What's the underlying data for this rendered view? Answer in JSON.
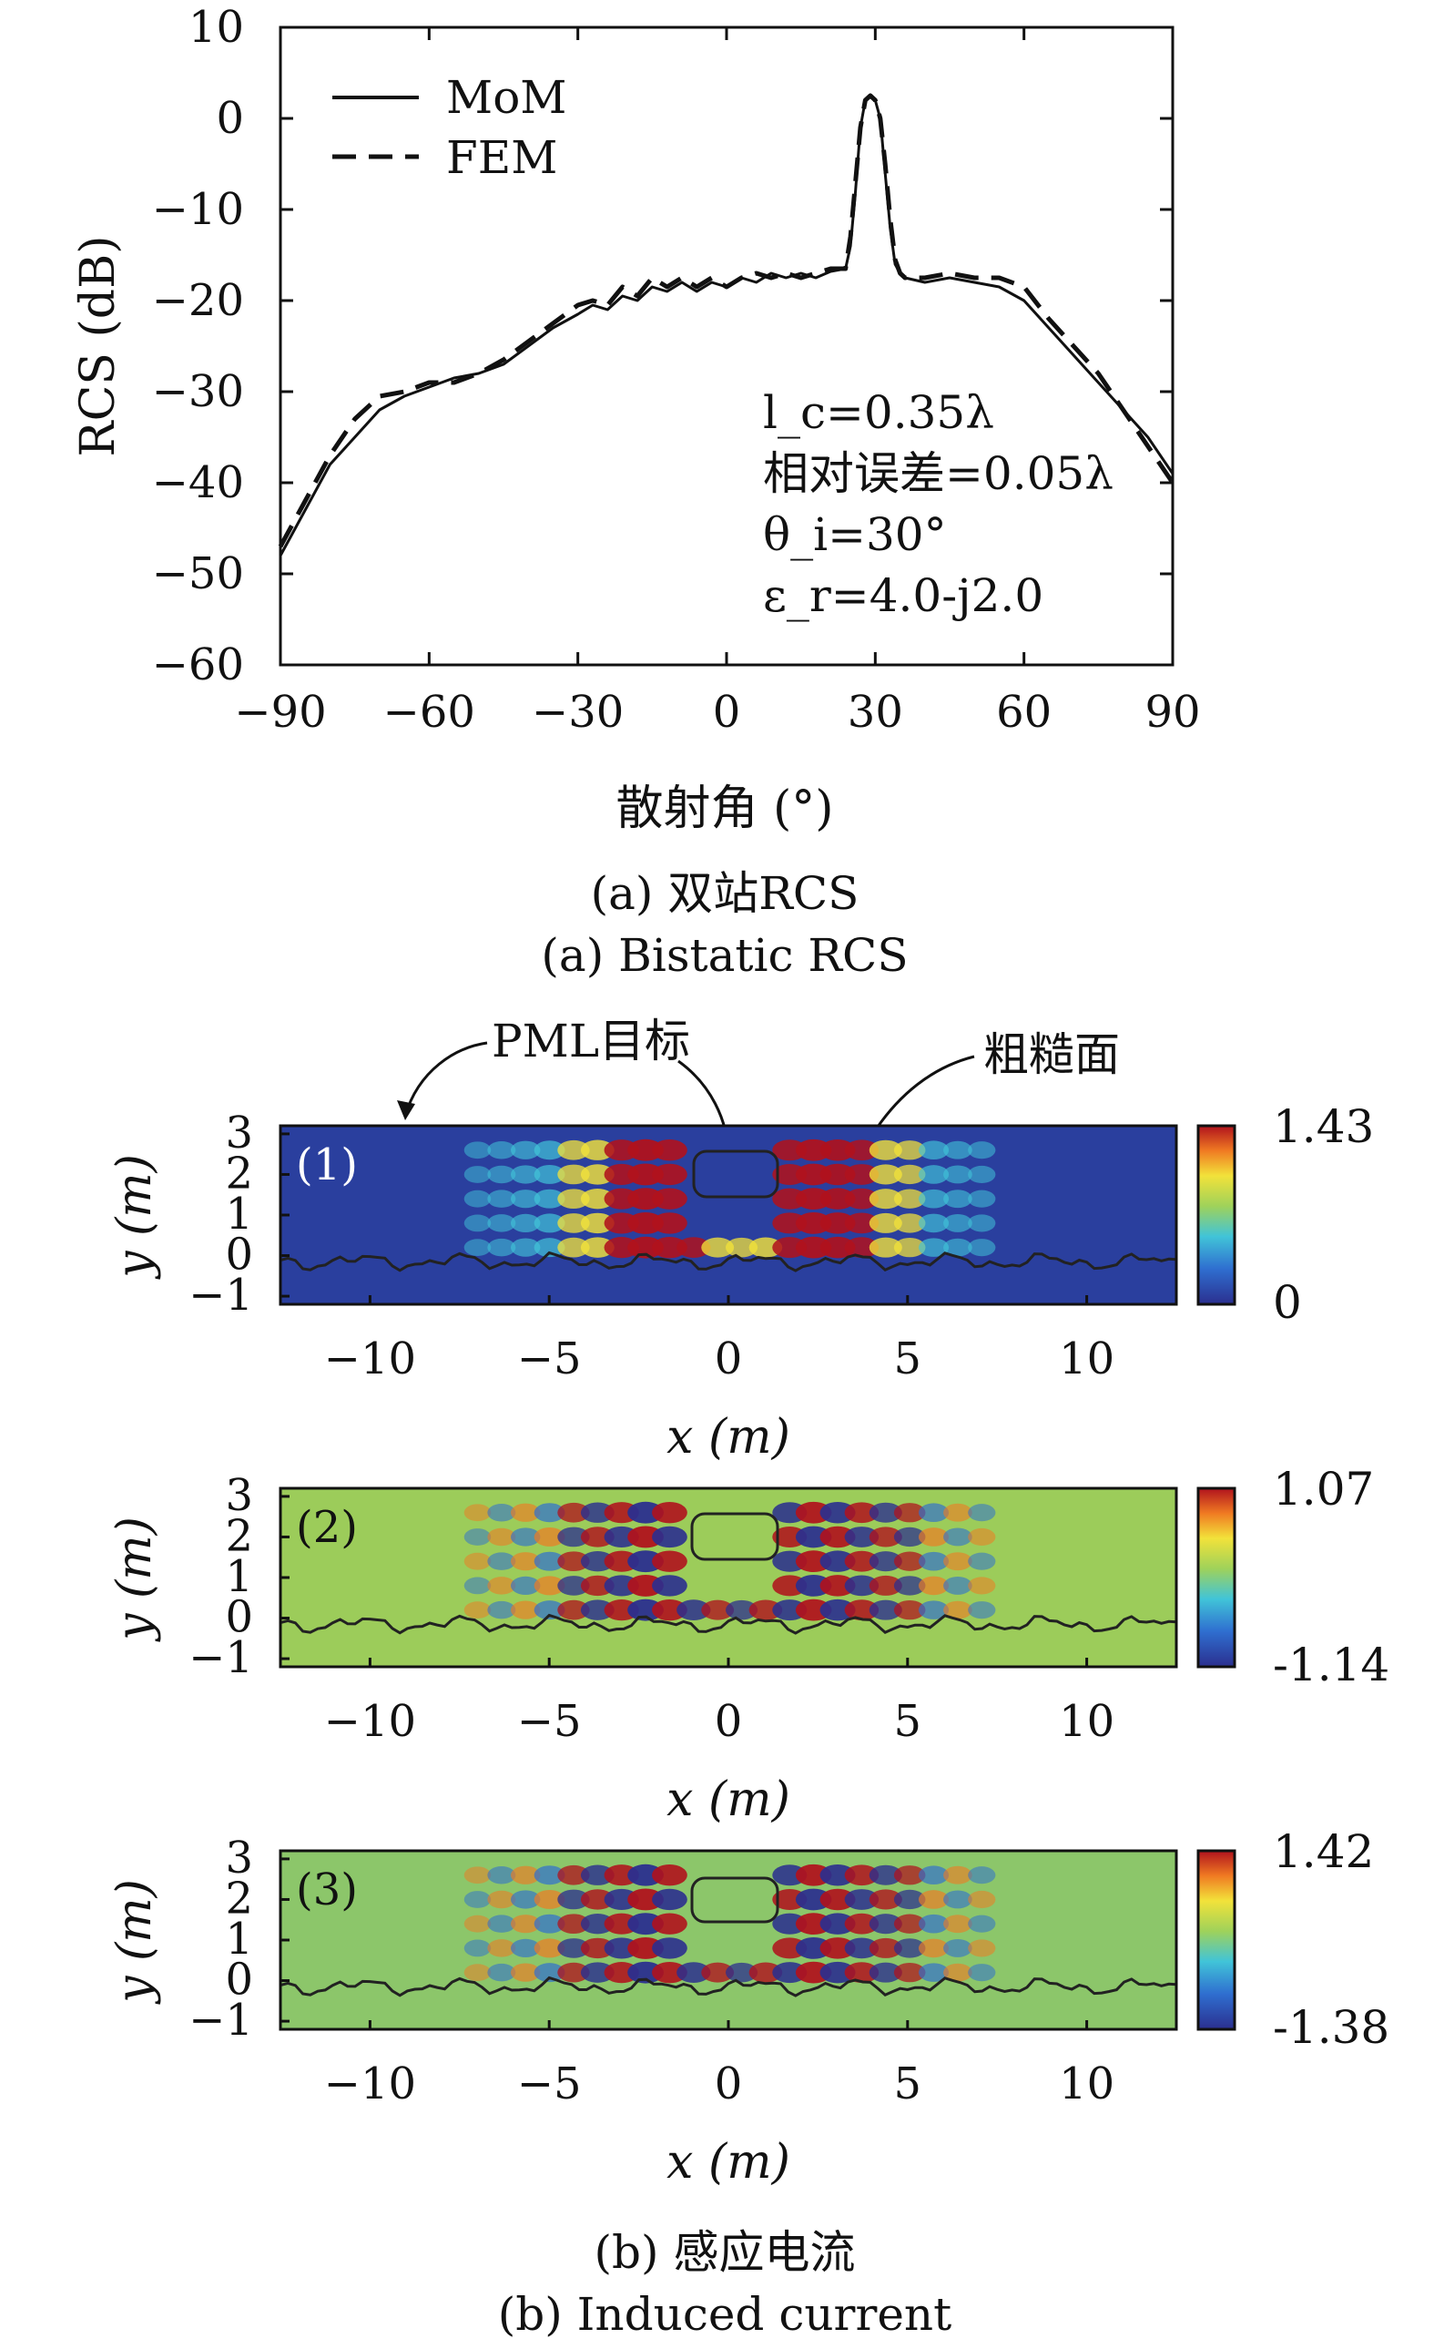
{
  "chart_data": [
    {
      "type": "line",
      "xlabel": "散射角 (°)",
      "ylabel": "RCS (dB)",
      "xlim": [
        -90,
        90
      ],
      "ylim": [
        -60,
        10
      ],
      "xticks": [
        -90,
        -60,
        -30,
        0,
        30,
        60,
        90
      ],
      "yticks": [
        10,
        0,
        -10,
        -20,
        -30,
        -40,
        -50,
        -60
      ],
      "legend_position": "top-left",
      "series": [
        {
          "name": "MoM",
          "style": "solid",
          "x": [
            -90,
            -85,
            -80,
            -75,
            -70,
            -65,
            -60,
            -55,
            -50,
            -45,
            -40,
            -35,
            -30,
            -27,
            -24,
            -21,
            -18,
            -15,
            -12,
            -9,
            -6,
            -3,
            0,
            3,
            6,
            9,
            12,
            15,
            18,
            21,
            24,
            25,
            26,
            27,
            28,
            29,
            30,
            31,
            32,
            33,
            34,
            35,
            36,
            40,
            45,
            50,
            55,
            60,
            65,
            70,
            75,
            80,
            85,
            90
          ],
          "y": [
            -48,
            -43,
            -38,
            -35,
            -32,
            -30.5,
            -29.5,
            -28.5,
            -28,
            -27,
            -25,
            -23,
            -21.5,
            -20.5,
            -21,
            -19.5,
            -20,
            -18.5,
            -19,
            -18,
            -19,
            -18,
            -18.5,
            -17.5,
            -18,
            -17,
            -17.5,
            -17,
            -17.5,
            -16.8,
            -16.5,
            -14,
            -8,
            -1,
            2,
            2.5,
            2,
            0,
            -6,
            -12,
            -16,
            -17,
            -17.5,
            -18,
            -17.5,
            -18,
            -18.5,
            -20,
            -23,
            -26,
            -29,
            -32,
            -35,
            -39
          ]
        },
        {
          "name": "FEM",
          "style": "dashed",
          "x": [
            -90,
            -85,
            -80,
            -75,
            -70,
            -65,
            -60,
            -55,
            -50,
            -45,
            -40,
            -35,
            -30,
            -27,
            -24,
            -21,
            -18,
            -15,
            -12,
            -9,
            -6,
            -3,
            0,
            3,
            6,
            9,
            12,
            15,
            18,
            21,
            24,
            25,
            26,
            27,
            28,
            29,
            30,
            31,
            32,
            33,
            34,
            35,
            36,
            40,
            45,
            50,
            55,
            60,
            65,
            70,
            75,
            80,
            85,
            90
          ],
          "y": [
            -47,
            -42,
            -37,
            -33,
            -30.5,
            -30,
            -29,
            -29,
            -28,
            -26.5,
            -24.5,
            -22.5,
            -20.5,
            -20,
            -20.5,
            -18.5,
            -19.5,
            -17.5,
            -18.5,
            -17.5,
            -18.5,
            -17.5,
            -18.5,
            -17.5,
            -17,
            -17.5,
            -17,
            -17.5,
            -17,
            -16.5,
            -16.5,
            -13,
            -7,
            -1,
            2,
            2.5,
            2,
            0,
            -5,
            -11,
            -15.5,
            -17,
            -17.5,
            -17.5,
            -17,
            -17.5,
            -17.5,
            -18.5,
            -22,
            -25,
            -28,
            -32,
            -36,
            -40
          ]
        }
      ],
      "annotations": [
        "l_c=0.35λ",
        "相对误差=0.05λ",
        "θ_i=30°",
        "ε_r=4.0-j2.0"
      ]
    },
    {
      "type": "heatmap",
      "panel": "(1)",
      "xlabel": "x (m)",
      "ylabel": "y (m)",
      "xlim": [
        -12.5,
        12.5
      ],
      "ylim": [
        -1.2,
        3.2
      ],
      "xticks": [
        -10,
        -5,
        0,
        5,
        10
      ],
      "yticks": [
        3,
        2,
        1,
        0,
        -1
      ],
      "colorbar": {
        "max": "1.43",
        "min": "0"
      },
      "annotations": [
        "PML目标",
        "粗糙面"
      ]
    },
    {
      "type": "heatmap",
      "panel": "(2)",
      "xlabel": "x (m)",
      "ylabel": "y (m)",
      "xlim": [
        -12.5,
        12.5
      ],
      "ylim": [
        -1.2,
        3.2
      ],
      "xticks": [
        -10,
        -5,
        0,
        5,
        10
      ],
      "yticks": [
        3,
        2,
        1,
        0,
        -1
      ],
      "colorbar": {
        "max": "1.07",
        "min": "-1.14"
      }
    },
    {
      "type": "heatmap",
      "panel": "(3)",
      "xlabel": "x (m)",
      "ylabel": "y (m)",
      "xlim": [
        -12.5,
        12.5
      ],
      "ylim": [
        -1.2,
        3.2
      ],
      "xticks": [
        -10,
        -5,
        0,
        5,
        10
      ],
      "yticks": [
        3,
        2,
        1,
        0,
        -1
      ],
      "colorbar": {
        "max": "1.42",
        "min": "-1.38"
      }
    }
  ],
  "captions": {
    "a_cn": "(a) 双站RCS",
    "a_en": "(a) Bistatic RCS",
    "b_cn": "(b) 感应电流",
    "b_en": "(b) Induced current"
  },
  "colors": {
    "line": "#111111",
    "heat_bg_1": "#2a3f9e",
    "heat_bg_2": "#9ccc5a",
    "heat_bg_3": "#8cc66a"
  }
}
